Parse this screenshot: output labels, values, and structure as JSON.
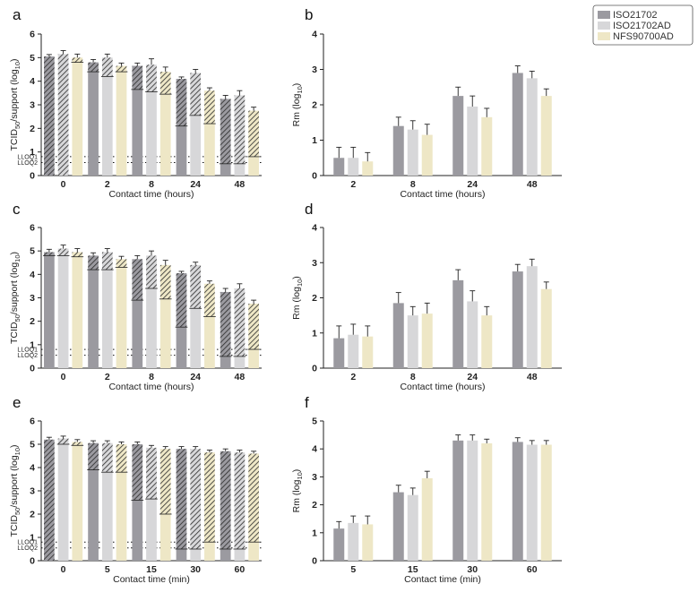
{
  "colors": {
    "ISO21702": "#9b9aa0",
    "ISO21702AD": "#d7d7d9",
    "NFS90700AD": "#eee7c6",
    "hatch": "#2a2a2a",
    "axis": "#222222"
  },
  "legend": {
    "placement": "top-right",
    "entries": [
      "ISO21702",
      "ISO21702AD",
      "NFS90700AD"
    ]
  },
  "lloq": {
    "labels": [
      "LLOQ1",
      "LLOQ2"
    ],
    "values": [
      0.8,
      0.55
    ]
  },
  "chart_data": [
    {
      "panel": "a",
      "type": "bar",
      "categories": [
        "0",
        "2",
        "8",
        "24",
        "48"
      ],
      "xlabel": "Contact time (hours)",
      "ylabel_parts": [
        "TCID",
        "50",
        "/support (log",
        "10",
        ")"
      ],
      "ylim": [
        0,
        6
      ],
      "yticks": [
        0,
        1,
        2,
        3,
        4,
        5,
        6
      ],
      "series": [
        {
          "name": "ISO21702",
          "values": [
            5.05,
            4.8,
            4.65,
            4.1,
            3.25
          ],
          "errors": [
            0.08,
            0.12,
            0.12,
            0.08,
            0.15
          ],
          "hatch_bottom": [
            0,
            4.4,
            3.65,
            2.1,
            0.5
          ]
        },
        {
          "name": "ISO21702AD",
          "values": [
            5.15,
            5.0,
            4.7,
            4.35,
            3.4
          ],
          "errors": [
            0.15,
            0.15,
            0.25,
            0.15,
            0.2
          ],
          "hatch_bottom": [
            0,
            4.2,
            3.55,
            2.55,
            0.5
          ]
        },
        {
          "name": "NFS90700AD",
          "values": [
            5.0,
            4.65,
            4.4,
            3.6,
            2.75
          ],
          "errors": [
            0.15,
            0.12,
            0.2,
            0.12,
            0.15
          ],
          "hatch_bottom": [
            4.8,
            4.4,
            3.45,
            2.2,
            0.8
          ]
        }
      ],
      "lloq": true
    },
    {
      "panel": "b",
      "type": "bar",
      "categories": [
        "2",
        "8",
        "24",
        "48"
      ],
      "xlabel": "Contact time (hours)",
      "ylabel_parts": [
        "Rm (log",
        "10",
        ")"
      ],
      "ylim": [
        0,
        4
      ],
      "yticks": [
        0,
        1,
        2,
        3,
        4
      ],
      "series": [
        {
          "name": "ISO21702",
          "values": [
            0.5,
            1.4,
            2.25,
            2.9
          ],
          "errors": [
            0.3,
            0.25,
            0.25,
            0.2
          ]
        },
        {
          "name": "ISO21702AD",
          "values": [
            0.5,
            1.3,
            1.95,
            2.75
          ],
          "errors": [
            0.3,
            0.25,
            0.3,
            0.2
          ]
        },
        {
          "name": "NFS90700AD",
          "values": [
            0.4,
            1.15,
            1.65,
            2.25
          ],
          "errors": [
            0.25,
            0.3,
            0.25,
            0.2
          ]
        }
      ],
      "lloq": false
    },
    {
      "panel": "c",
      "type": "bar",
      "categories": [
        "0",
        "2",
        "8",
        "24",
        "48"
      ],
      "xlabel": "Contact time (hours)",
      "ylabel_parts": [
        "TCID",
        "50",
        "/support (log",
        "10",
        ")"
      ],
      "ylim": [
        0,
        6
      ],
      "yticks": [
        0,
        1,
        2,
        3,
        4,
        5,
        6
      ],
      "series": [
        {
          "name": "ISO21702",
          "values": [
            4.95,
            4.8,
            4.65,
            4.05,
            3.25
          ],
          "errors": [
            0.12,
            0.12,
            0.15,
            0.08,
            0.15
          ],
          "hatch_bottom": [
            4.8,
            4.2,
            2.9,
            1.75,
            0.5
          ]
        },
        {
          "name": "ISO21702AD",
          "values": [
            5.1,
            4.95,
            4.8,
            4.4,
            3.4
          ],
          "errors": [
            0.15,
            0.15,
            0.2,
            0.12,
            0.2
          ],
          "hatch_bottom": [
            4.8,
            4.2,
            3.4,
            2.55,
            0.5
          ]
        },
        {
          "name": "NFS90700AD",
          "values": [
            4.95,
            4.65,
            4.4,
            3.6,
            2.75
          ],
          "errors": [
            0.15,
            0.12,
            0.2,
            0.12,
            0.15
          ],
          "hatch_bottom": [
            4.75,
            4.3,
            2.95,
            2.2,
            0.8
          ]
        }
      ],
      "lloq": true
    },
    {
      "panel": "d",
      "type": "bar",
      "categories": [
        "2",
        "8",
        "24",
        "48"
      ],
      "xlabel": "Contact time (hours)",
      "ylabel_parts": [
        "Rm (log",
        "10",
        ")"
      ],
      "ylim": [
        0,
        4
      ],
      "yticks": [
        0,
        1,
        2,
        3,
        4
      ],
      "series": [
        {
          "name": "ISO21702",
          "values": [
            0.85,
            1.85,
            2.5,
            2.75
          ],
          "errors": [
            0.35,
            0.3,
            0.3,
            0.2
          ]
        },
        {
          "name": "ISO21702AD",
          "values": [
            0.95,
            1.5,
            1.9,
            2.9
          ],
          "errors": [
            0.3,
            0.25,
            0.3,
            0.2
          ]
        },
        {
          "name": "NFS90700AD",
          "values": [
            0.9,
            1.55,
            1.5,
            2.25
          ],
          "errors": [
            0.3,
            0.3,
            0.25,
            0.2
          ]
        }
      ],
      "lloq": false
    },
    {
      "panel": "e",
      "type": "bar",
      "categories": [
        "0",
        "5",
        "15",
        "30",
        "60"
      ],
      "xlabel": "Contact time (min)",
      "ylabel_parts": [
        "TCID",
        "50",
        "/support (log",
        "10",
        ")"
      ],
      "ylim": [
        0,
        6
      ],
      "yticks": [
        0,
        1,
        2,
        3,
        4,
        5,
        6
      ],
      "series": [
        {
          "name": "ISO21702",
          "values": [
            5.2,
            5.05,
            5.0,
            4.8,
            4.7
          ],
          "errors": [
            0.1,
            0.1,
            0.1,
            0.1,
            0.1
          ],
          "hatch_bottom": [
            0,
            3.9,
            2.6,
            0.5,
            0.5
          ]
        },
        {
          "name": "ISO21702AD",
          "values": [
            5.25,
            5.05,
            4.85,
            4.8,
            4.65
          ],
          "errors": [
            0.1,
            0.1,
            0.1,
            0.1,
            0.1
          ],
          "hatch_bottom": [
            5.0,
            3.8,
            2.65,
            0.5,
            0.5
          ]
        },
        {
          "name": "NFS90700AD",
          "values": [
            5.1,
            5.0,
            4.8,
            4.65,
            4.6
          ],
          "errors": [
            0.1,
            0.1,
            0.1,
            0.1,
            0.1
          ],
          "hatch_bottom": [
            4.95,
            3.8,
            2.0,
            0.8,
            0.8
          ]
        }
      ],
      "lloq": true
    },
    {
      "panel": "f",
      "type": "bar",
      "categories": [
        "5",
        "15",
        "30",
        "60"
      ],
      "xlabel": "Contact time (min)",
      "ylabel_parts": [
        "Rm (log",
        "10",
        ")"
      ],
      "ylim": [
        0,
        5
      ],
      "yticks": [
        0,
        1,
        2,
        3,
        4,
        5
      ],
      "series": [
        {
          "name": "ISO21702",
          "values": [
            1.15,
            2.45,
            4.3,
            4.25
          ],
          "errors": [
            0.25,
            0.25,
            0.2,
            0.15
          ]
        },
        {
          "name": "ISO21702AD",
          "values": [
            1.35,
            2.35,
            4.3,
            4.15
          ],
          "errors": [
            0.25,
            0.25,
            0.2,
            0.15
          ]
        },
        {
          "name": "NFS90700AD",
          "values": [
            1.3,
            2.95,
            4.2,
            4.15
          ],
          "errors": [
            0.3,
            0.25,
            0.15,
            0.15
          ]
        }
      ],
      "lloq": false
    }
  ]
}
